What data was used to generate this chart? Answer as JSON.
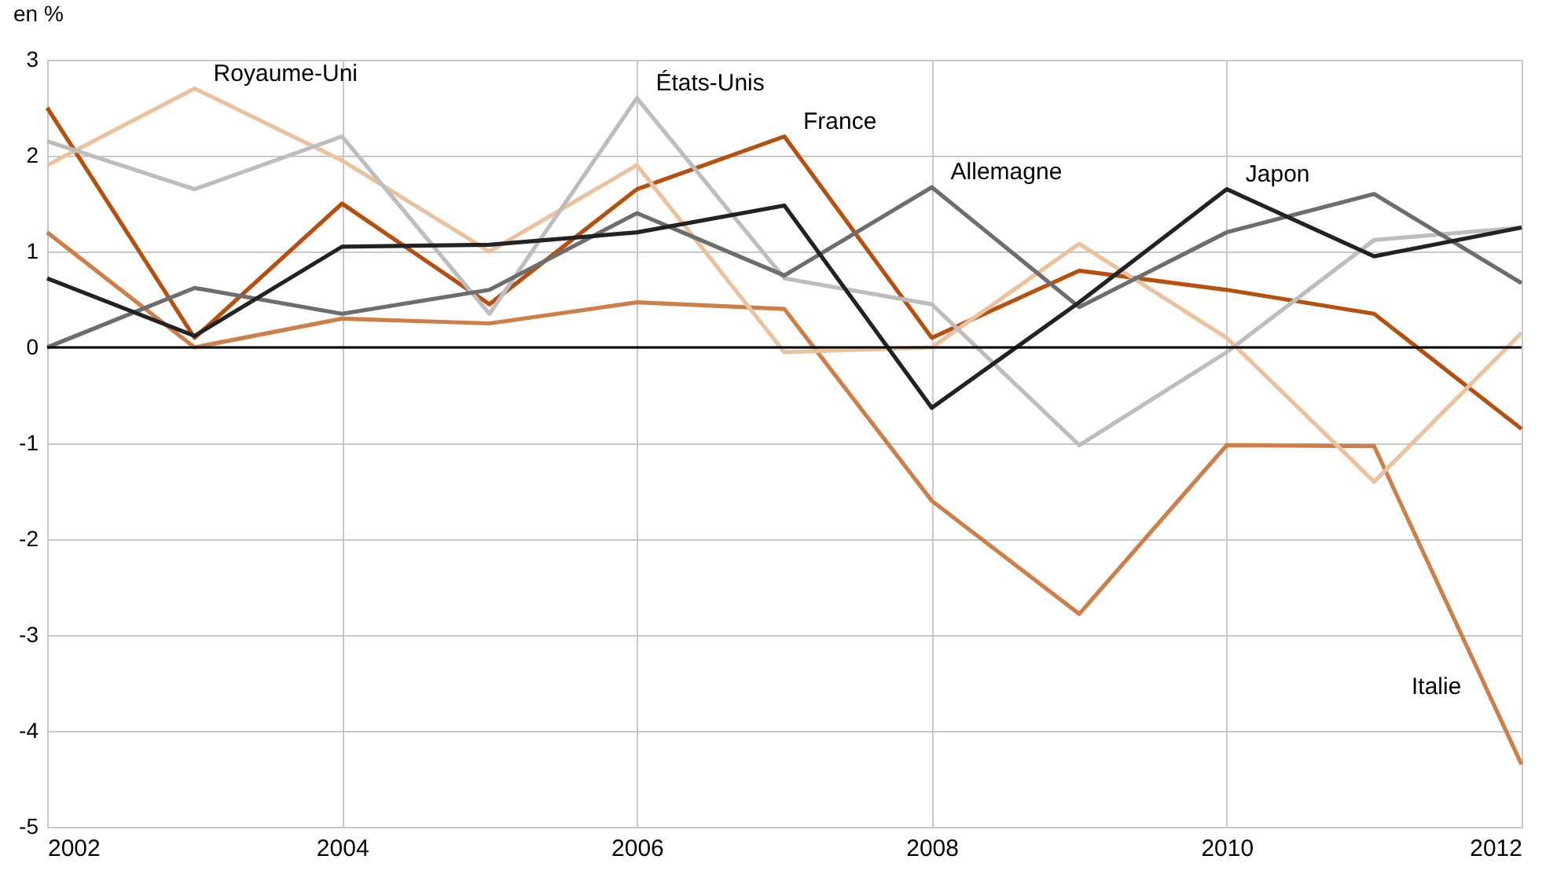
{
  "chart_data": {
    "type": "line",
    "ylabel": "en %",
    "x": [
      2002,
      2003,
      2004,
      2005,
      2006,
      2007,
      2008,
      2009,
      2010,
      2011,
      2012
    ],
    "xlim": [
      2002,
      2012
    ],
    "xticks": [
      2002,
      2004,
      2006,
      2008,
      2010,
      2012
    ],
    "ylim": [
      -5,
      3
    ],
    "yticks": [
      -5,
      -4,
      -3,
      -2,
      -1,
      0,
      1,
      2,
      3
    ],
    "grid": true,
    "legend": false,
    "marker": "none",
    "line_style": "solid",
    "ref_lines": [
      {
        "axis": "y",
        "value": 0,
        "color": "#000000"
      }
    ],
    "series": [
      {
        "name": "France",
        "color": "#b5500f",
        "values": [
          2.5,
          0.1,
          1.5,
          0.45,
          1.65,
          2.2,
          0.1,
          0.8,
          0.6,
          0.35,
          -0.85
        ]
      },
      {
        "name": "Italie",
        "color": "#cd7f4a",
        "values": [
          1.2,
          0.0,
          0.3,
          0.25,
          0.47,
          0.4,
          -1.6,
          -2.78,
          -1.02,
          -1.03,
          -4.35
        ]
      },
      {
        "name": "Royaume-Uni",
        "color": "#ecc19e",
        "values": [
          1.9,
          2.7,
          1.95,
          1.0,
          1.9,
          -0.05,
          0.0,
          1.08,
          0.1,
          -1.4,
          0.15
        ]
      },
      {
        "name": "États-Unis",
        "color": "#bdbdbd",
        "values": [
          2.15,
          1.65,
          2.2,
          0.35,
          2.6,
          0.72,
          0.45,
          -1.02,
          -0.05,
          1.12,
          1.25
        ]
      },
      {
        "name": "Allemagne",
        "color": "#6d6d6d",
        "values": [
          0.0,
          0.62,
          0.35,
          0.6,
          1.4,
          0.75,
          1.67,
          0.42,
          1.2,
          1.6,
          0.67
        ]
      },
      {
        "name": "Japon",
        "color": "#222222",
        "values": [
          0.72,
          0.12,
          1.05,
          1.07,
          1.2,
          1.48,
          -0.63,
          0.47,
          1.65,
          0.95,
          1.25
        ]
      }
    ]
  }
}
